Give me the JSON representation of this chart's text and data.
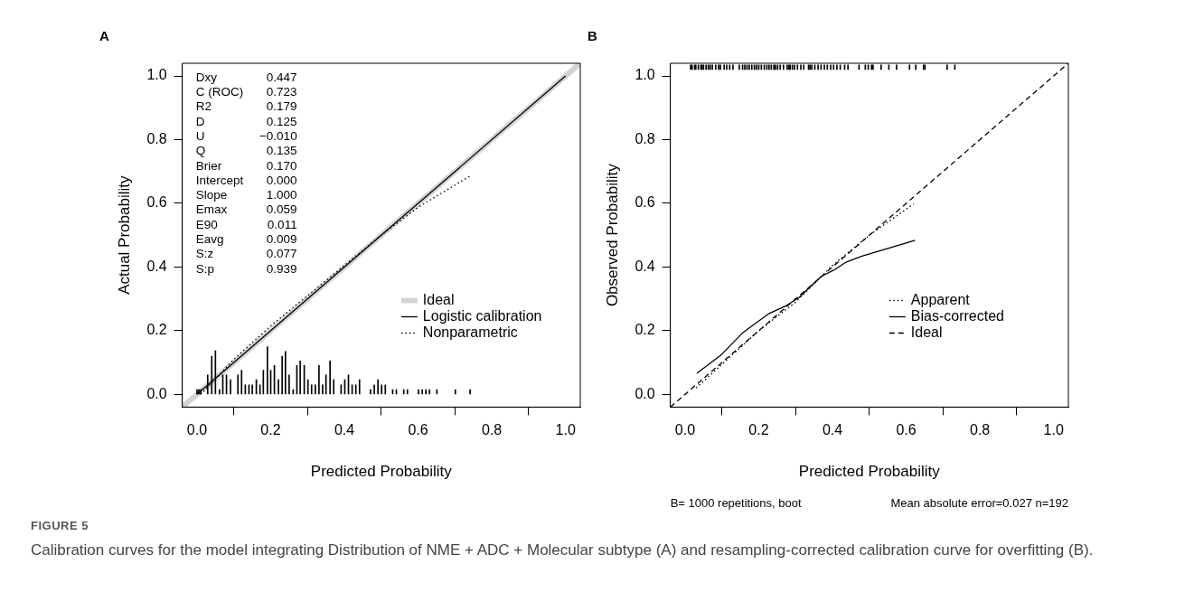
{
  "chart_data": [
    {
      "type": "line",
      "title": "A",
      "xlabel": "Predicted Probability",
      "ylabel": "Actual Probability",
      "xlim": [
        -0.04,
        1.04
      ],
      "ylim": [
        -0.04,
        1.04
      ],
      "xticks": [
        {
          "value": 0,
          "label": "0.0"
        },
        {
          "value": 0.2,
          "label": "0.2"
        },
        {
          "value": 0.4,
          "label": "0.4"
        },
        {
          "value": 0.6,
          "label": "0.6"
        },
        {
          "value": 0.8,
          "label": "0.8"
        },
        {
          "value": 1,
          "label": "1.0"
        }
      ],
      "yticks": [
        {
          "value": 0,
          "label": "0.0"
        },
        {
          "value": 0.2,
          "label": "0.2"
        },
        {
          "value": 0.4,
          "label": "0.4"
        },
        {
          "value": 0.6,
          "label": "0.6"
        },
        {
          "value": 0.8,
          "label": "0.8"
        },
        {
          "value": 1,
          "label": "1.0"
        }
      ],
      "grid": false,
      "legend": "bottom right",
      "marker": "none",
      "annotations": [
        "Dxy 0.447",
        "C (ROC) 0.723",
        "R2 0.179",
        "D 0.125",
        "U −0.010",
        "Q 0.135",
        "Brier 0.170",
        "Intercept 0.000",
        "Slope 1.000",
        "Emax 0.059",
        "E90 0.011",
        "Eavg 0.009",
        "S:z 0.077",
        "S:p 0.939"
      ],
      "series": [
        {
          "name": "Ideal",
          "color": "#d3d3d3",
          "line_style": "solid",
          "x": [
            -0.04,
            1.04
          ],
          "values": [
            -0.04,
            1.04
          ]
        },
        {
          "name": "Logistic calibration",
          "color": "#000000",
          "line_style": "solid",
          "x": [
            0,
            1
          ],
          "values": [
            0,
            1
          ]
        },
        {
          "name": "Nonparametric",
          "color": "#000000",
          "line_style": "dotted",
          "x": [
            0.01,
            0.1,
            0.2,
            0.3,
            0.4,
            0.5,
            0.6,
            0.74
          ],
          "values": [
            0,
            0.11,
            0.215,
            0.31,
            0.405,
            0.5,
            0.588,
            0.685
          ]
        },
        {
          "type": "bar",
          "color": "#000000",
          "x": [
            0,
            0.005,
            0.01,
            0.029,
            0.04,
            0.05,
            0.061,
            0.07,
            0.08,
            0.091,
            0.111,
            0.121,
            0.131,
            0.141,
            0.15,
            0.161,
            0.171,
            0.18,
            0.191,
            0.2,
            0.21,
            0.221,
            0.231,
            0.24,
            0.25,
            0.261,
            0.271,
            0.28,
            0.291,
            0.301,
            0.311,
            0.321,
            0.331,
            0.341,
            0.35,
            0.361,
            0.371,
            0.391,
            0.401,
            0.411,
            0.421,
            0.431,
            0.441,
            0.471,
            0.481,
            0.491,
            0.501,
            0.511,
            0.531,
            0.541,
            0.561,
            0.571,
            0.601,
            0.611,
            0.621,
            0.631,
            0.651,
            0.701,
            0.741
          ],
          "values": [
            0.015,
            0.015,
            0.015,
            0.061,
            0.12,
            0.137,
            0.015,
            0.061,
            0.061,
            0.046,
            0.061,
            0.076,
            0.03,
            0.03,
            0.03,
            0.046,
            0.03,
            0.076,
            0.15,
            0.076,
            0.091,
            0.046,
            0.12,
            0.135,
            0.061,
            0.015,
            0.091,
            0.105,
            0.091,
            0.046,
            0.03,
            0.03,
            0.091,
            0.03,
            0.061,
            0.105,
            0.046,
            0.03,
            0.046,
            0.061,
            0.03,
            0.03,
            0.046,
            0.015,
            0.03,
            0.046,
            0.03,
            0.03,
            0.015,
            0.015,
            0.015,
            0.015,
            0.015,
            0.015,
            0.015,
            0.015,
            0.015,
            0.015,
            0.015
          ]
        }
      ]
    },
    {
      "type": "line",
      "title": "B",
      "xlabel": "Predicted Probability",
      "ylabel": "Observed Probability",
      "xlim": [
        -0.04,
        1.04
      ],
      "ylim": [
        -0.04,
        1.04
      ],
      "xticks": [
        {
          "value": 0,
          "label": "0.0"
        },
        {
          "value": 0.2,
          "label": "0.2"
        },
        {
          "value": 0.4,
          "label": "0.4"
        },
        {
          "value": 0.6,
          "label": "0.6"
        },
        {
          "value": 0.8,
          "label": "0.8"
        },
        {
          "value": 1,
          "label": "1.0"
        }
      ],
      "yticks": [
        {
          "value": 0,
          "label": "0.0"
        },
        {
          "value": 0.2,
          "label": "0.2"
        },
        {
          "value": 0.4,
          "label": "0.4"
        },
        {
          "value": 0.6,
          "label": "0.6"
        },
        {
          "value": 0.8,
          "label": "0.8"
        },
        {
          "value": 1,
          "label": "1.0"
        }
      ],
      "grid": false,
      "legend": "bottom right",
      "marker": "none",
      "annotations": [
        "B= 1000 repetitions, boot",
        "Mean absolute error=0.027 n=192",
        "FIGURE 5",
        "Calibration curves for the model integrating Distribution of NME + ADC + Molecular subtype (A) and resampling-corrected calibration curve for overfitting (B)."
      ],
      "series": [
        {
          "name": "Apparent",
          "color": "#000000",
          "line_style": "dotted",
          "x": [
            0.03,
            0.2,
            0.3,
            0.4,
            0.5,
            0.62
          ],
          "values": [
            0.02,
            0.2,
            0.29,
            0.405,
            0.5,
            0.598
          ]
        },
        {
          "name": "Bias-corrected",
          "color": "#000000",
          "line_style": "solid",
          "x": [
            0.032,
            0.096,
            0.156,
            0.228,
            0.275,
            0.309,
            0.369,
            0.403,
            0.438,
            0.48,
            0.624
          ],
          "values": [
            0.066,
            0.122,
            0.193,
            0.254,
            0.279,
            0.304,
            0.37,
            0.39,
            0.416,
            0.434,
            0.484
          ]
        },
        {
          "name": "Ideal",
          "color": "#000000",
          "line_style": "dashed",
          "x": [
            -0.04,
            1.04
          ],
          "values": [
            -0.04,
            1.04
          ]
        },
        {
          "type": "bar",
          "color": "#000000",
          "x": [
            0.015,
            0.019,
            0.026,
            0.029,
            0.036,
            0.043,
            0.046,
            0.05,
            0.057,
            0.063,
            0.068,
            0.074,
            0.083,
            0.091,
            0.096,
            0.106,
            0.113,
            0.121,
            0.13,
            0.147,
            0.156,
            0.162,
            0.168,
            0.174,
            0.181,
            0.188,
            0.194,
            0.2,
            0.207,
            0.215,
            0.222,
            0.228,
            0.234,
            0.241,
            0.245,
            0.251,
            0.258,
            0.267,
            0.277,
            0.282,
            0.285,
            0.291,
            0.297,
            0.305,
            0.314,
            0.322,
            0.335,
            0.339,
            0.344,
            0.352,
            0.361,
            0.369,
            0.378,
            0.386,
            0.395,
            0.403,
            0.412,
            0.421,
            0.433,
            0.442,
            0.472,
            0.489,
            0.497,
            0.506,
            0.51,
            0.532,
            0.553,
            0.574,
            0.609,
            0.626,
            0.647,
            0.651,
            0.711,
            0.732
          ],
          "base": [
            1.02,
            1.02,
            1.02,
            1.02,
            1.02,
            1.02,
            1.02,
            1.02,
            1.02,
            1.02,
            1.02,
            1.02,
            1.02,
            1.02,
            1.02,
            1.02,
            1.02,
            1.02,
            1.02,
            1.02,
            1.02,
            1.02,
            1.02,
            1.02,
            1.02,
            1.02,
            1.02,
            1.02,
            1.02,
            1.02,
            1.02,
            1.02,
            1.02,
            1.02,
            1.02,
            1.02,
            1.02,
            1.02,
            1.02,
            1.02,
            1.02,
            1.02,
            1.02,
            1.02,
            1.02,
            1.02,
            1.02,
            1.02,
            1.02,
            1.02,
            1.02,
            1.02,
            1.02,
            1.02,
            1.02,
            1.02,
            1.02,
            1.02,
            1.02,
            1.02,
            1.02,
            1.02,
            1.02,
            1.02,
            1.02,
            1.02,
            1.02,
            1.02,
            1.02,
            1.02,
            1.02,
            1.02,
            1.02,
            1.02
          ],
          "values": [
            0.015,
            0.015,
            0.015,
            0.015,
            0.015,
            0.015,
            0.015,
            0.015,
            0.015,
            0.015,
            0.015,
            0.015,
            0.015,
            0.015,
            0.015,
            0.015,
            0.015,
            0.015,
            0.015,
            0.015,
            0.015,
            0.015,
            0.015,
            0.015,
            0.015,
            0.015,
            0.015,
            0.015,
            0.015,
            0.015,
            0.015,
            0.015,
            0.015,
            0.015,
            0.015,
            0.015,
            0.015,
            0.015,
            0.015,
            0.015,
            0.015,
            0.015,
            0.015,
            0.015,
            0.015,
            0.015,
            0.015,
            0.015,
            0.015,
            0.015,
            0.015,
            0.015,
            0.015,
            0.015,
            0.015,
            0.015,
            0.015,
            0.015,
            0.015,
            0.015,
            0.015,
            0.015,
            0.015,
            0.015,
            0.015,
            0.015,
            0.015,
            0.015,
            0.015,
            0.015,
            0.015,
            0.015,
            0.015,
            0.015
          ]
        }
      ]
    }
  ]
}
